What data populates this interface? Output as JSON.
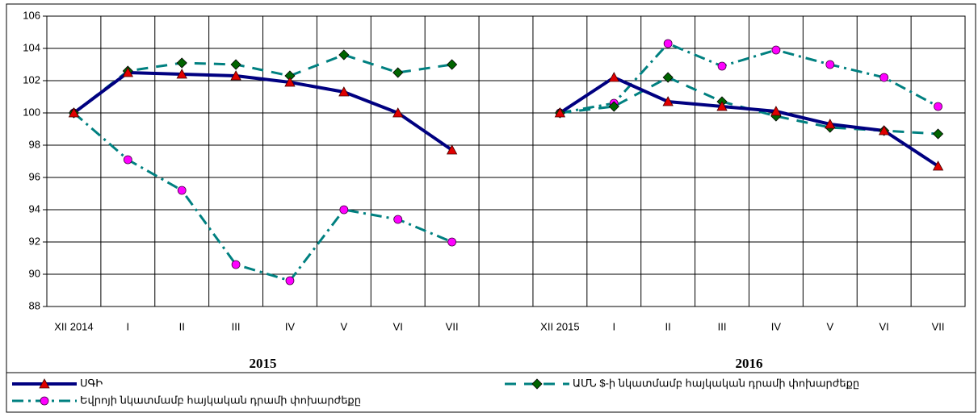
{
  "chart_data": {
    "type": "line",
    "categories": [
      "XII 2014",
      "I",
      "II",
      "III",
      "IV",
      "V",
      "VI",
      "VII",
      null,
      "XII 2015",
      "I",
      "II",
      "III",
      "IV",
      "V",
      "VI",
      "VII"
    ],
    "groups": [
      "2015",
      "2016"
    ],
    "ylim": [
      88,
      106
    ],
    "yticks": [
      88,
      90,
      92,
      94,
      96,
      98,
      100,
      102,
      104,
      106
    ],
    "grid": true,
    "series": [
      {
        "name": "ՍԳԻ",
        "color": "#000080",
        "marker_color": "#e00000",
        "values": [
          100,
          102.5,
          102.4,
          102.3,
          101.9,
          101.3,
          100,
          97.7,
          null,
          100,
          102.2,
          100.7,
          100.4,
          100.1,
          99.3,
          98.9,
          96.7
        ]
      },
      {
        "name": "ԱՄՆ $-ի նկատմամբ հայկական դրամի փոխարժեքը",
        "color": "#008080",
        "marker_color": "#006400",
        "values": [
          100,
          102.6,
          103.1,
          103.0,
          102.3,
          103.6,
          102.5,
          103.0,
          null,
          100,
          100.4,
          102.2,
          100.7,
          99.8,
          99.1,
          98.9,
          98.7
        ]
      },
      {
        "name": "Եվրոյի նկատմամբ հայկական դրամի փոխարժեքը",
        "color": "#008080",
        "marker_color": "#ff00ff",
        "values": [
          100,
          97.1,
          95.2,
          90.6,
          89.6,
          94.0,
          93.4,
          92.0,
          null,
          100,
          100.6,
          104.3,
          102.9,
          103.9,
          103.0,
          102.2,
          100.4
        ]
      }
    ]
  }
}
